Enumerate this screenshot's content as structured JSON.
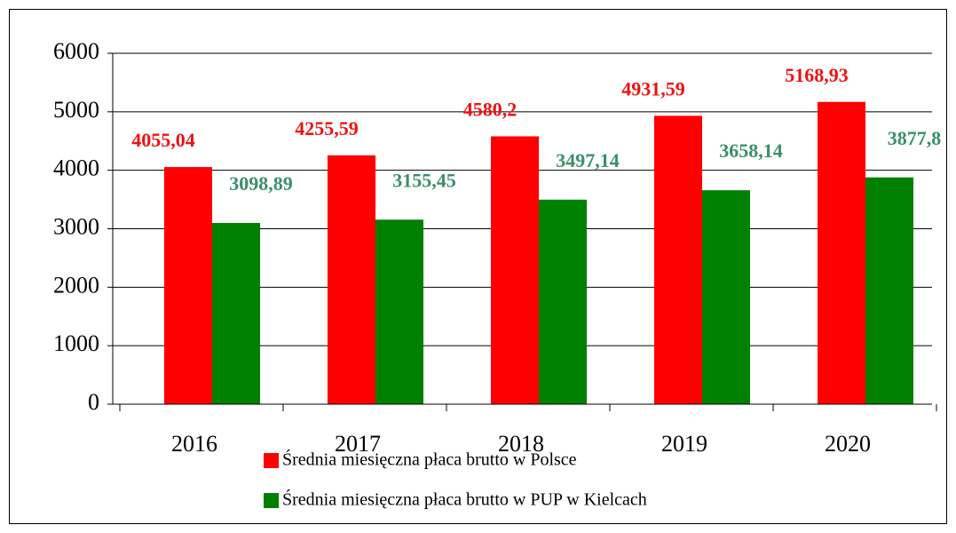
{
  "chart_data": {
    "type": "bar",
    "categories": [
      "2016",
      "2017",
      "2018",
      "2019",
      "2020"
    ],
    "series": [
      {
        "name": "Średnia miesięczna płaca brutto w Polsce",
        "color": "#ff0000",
        "label_color": "#ee1111",
        "values": [
          4055.04,
          4255.59,
          4580.2,
          4931.59,
          5168.93
        ],
        "value_labels": [
          "4055,04",
          "4255,59",
          "4580,2",
          "4931,59",
          "5168,93"
        ]
      },
      {
        "name": "Średnia miesięczna  płaca brutto w PUP w Kielcach",
        "color": "#008000",
        "label_color": "#3a8f6a",
        "values": [
          3098.89,
          3155.45,
          3497.14,
          3658.14,
          3877.8
        ],
        "value_labels": [
          "3098,89",
          "3155,45",
          "3497,14",
          "3658,14",
          "3877,8"
        ]
      }
    ],
    "ylim": [
      0,
      6000
    ],
    "yticks": [
      0,
      1000,
      2000,
      3000,
      4000,
      5000,
      6000
    ],
    "grid": true
  }
}
